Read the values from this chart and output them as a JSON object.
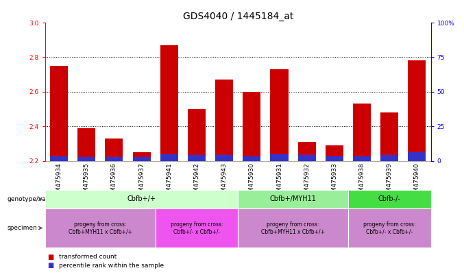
{
  "title": "GDS4040 / 1445184_at",
  "samples": [
    "GSM475934",
    "GSM475935",
    "GSM475936",
    "GSM475937",
    "GSM475941",
    "GSM475942",
    "GSM475943",
    "GSM475930",
    "GSM475931",
    "GSM475932",
    "GSM475933",
    "GSM475938",
    "GSM475939",
    "GSM475940"
  ],
  "red_values": [
    2.75,
    2.39,
    2.33,
    2.25,
    2.87,
    2.5,
    2.67,
    2.6,
    2.73,
    2.31,
    2.29,
    2.53,
    2.48,
    2.78
  ],
  "blue_heights": [
    0.028,
    0.022,
    0.022,
    0.022,
    0.04,
    0.035,
    0.035,
    0.028,
    0.04,
    0.035,
    0.028,
    0.028,
    0.035,
    0.05
  ],
  "ylim_left": [
    2.2,
    3.0
  ],
  "ylim_right": [
    0,
    100
  ],
  "yticks_left": [
    2.2,
    2.4,
    2.6,
    2.8,
    3.0
  ],
  "yticks_right": [
    0,
    25,
    50,
    75,
    100
  ],
  "ytick_labels_right": [
    "0",
    "25",
    "50",
    "75",
    "100%"
  ],
  "hlines": [
    2.4,
    2.6,
    2.8
  ],
  "bar_width": 0.65,
  "red_color": "#cc0000",
  "blue_color": "#3333cc",
  "genotype_groups": [
    {
      "label": "Cbfb+/+",
      "start": 0,
      "end": 7,
      "color": "#ccffcc"
    },
    {
      "label": "Cbfb+/MYH11",
      "start": 7,
      "end": 11,
      "color": "#99ee99"
    },
    {
      "label": "Cbfb-/-",
      "start": 11,
      "end": 14,
      "color": "#44dd44"
    }
  ],
  "specimen_groups": [
    {
      "label": "progeny from cross:\nCbfb+MYH11 x Cbfb+/+",
      "start": 0,
      "end": 4,
      "color": "#cc88cc"
    },
    {
      "label": "progeny from cross:\nCbfb+/- x Cbfb+/-",
      "start": 4,
      "end": 7,
      "color": "#ee55ee"
    },
    {
      "label": "progeny from cross:\nCbfb+MYH11 x Cbfb+/+",
      "start": 7,
      "end": 11,
      "color": "#cc88cc"
    },
    {
      "label": "progeny from cross:\nCbfb+/- x Cbfb+/-",
      "start": 11,
      "end": 14,
      "color": "#cc88cc"
    }
  ],
  "genotype_label": "genotype/variation",
  "specimen_label": "specimen",
  "title_fontsize": 10,
  "tick_fontsize": 6.5,
  "legend_red": "transformed count",
  "legend_blue": "percentile rank within the sample"
}
